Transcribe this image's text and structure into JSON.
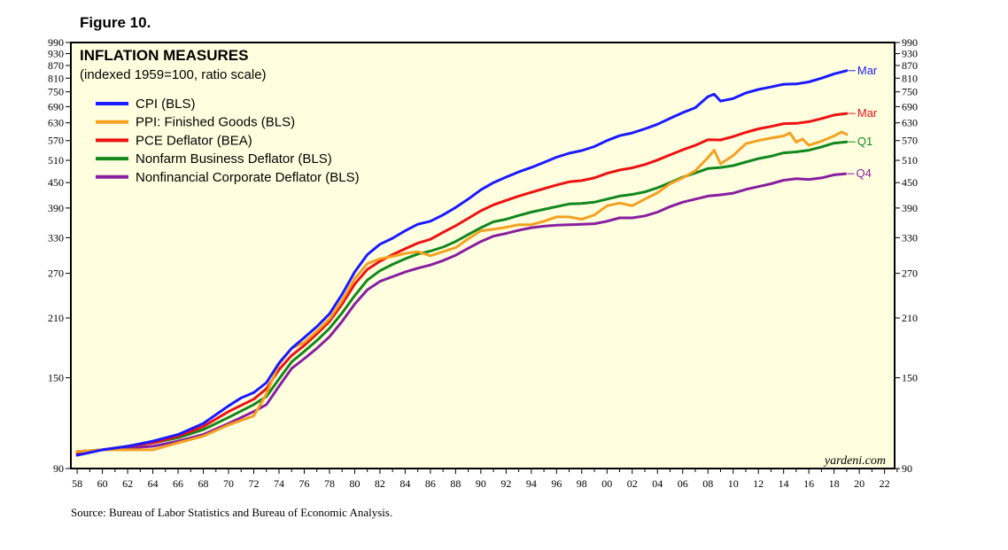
{
  "figure_label": "Figure 10.",
  "source": "Source: Bureau of Labor Statistics and Bureau of Economic Analysis.",
  "chart_data": {
    "type": "line",
    "title": "INFLATION MEASURES",
    "subtitle": "(indexed 1959=100, ratio scale)",
    "watermark": "yardeni.com",
    "ylim": [
      90,
      990
    ],
    "yscale": "log",
    "xlim": [
      1957.5,
      2022.8
    ],
    "y_ticks": [
      90,
      150,
      210,
      270,
      330,
      390,
      450,
      510,
      570,
      630,
      690,
      750,
      810,
      870,
      930,
      990
    ],
    "x_ticks": [
      {
        "year": 1958,
        "label": "58"
      },
      {
        "year": 1960,
        "label": "60"
      },
      {
        "year": 1962,
        "label": "62"
      },
      {
        "year": 1964,
        "label": "64"
      },
      {
        "year": 1966,
        "label": "66"
      },
      {
        "year": 1968,
        "label": "68"
      },
      {
        "year": 1970,
        "label": "70"
      },
      {
        "year": 1972,
        "label": "72"
      },
      {
        "year": 1974,
        "label": "74"
      },
      {
        "year": 1976,
        "label": "76"
      },
      {
        "year": 1978,
        "label": "78"
      },
      {
        "year": 1980,
        "label": "80"
      },
      {
        "year": 1982,
        "label": "82"
      },
      {
        "year": 1984,
        "label": "84"
      },
      {
        "year": 1986,
        "label": "86"
      },
      {
        "year": 1988,
        "label": "88"
      },
      {
        "year": 1990,
        "label": "90"
      },
      {
        "year": 1992,
        "label": "92"
      },
      {
        "year": 1994,
        "label": "94"
      },
      {
        "year": 1996,
        "label": "96"
      },
      {
        "year": 1998,
        "label": "98"
      },
      {
        "year": 2000,
        "label": "00"
      },
      {
        "year": 2002,
        "label": "02"
      },
      {
        "year": 2004,
        "label": "04"
      },
      {
        "year": 2006,
        "label": "06"
      },
      {
        "year": 2008,
        "label": "08"
      },
      {
        "year": 2010,
        "label": "10"
      },
      {
        "year": 2012,
        "label": "12"
      },
      {
        "year": 2014,
        "label": "14"
      },
      {
        "year": 2016,
        "label": "16"
      },
      {
        "year": 2018,
        "label": "18"
      },
      {
        "year": 2020,
        "label": "20"
      },
      {
        "year": 2022,
        "label": "22"
      }
    ],
    "legend": "top-left",
    "series": [
      {
        "name": "CPI (BLS)",
        "color": "#1a1aff",
        "end_label": "Mar",
        "points": [
          [
            1958,
            97
          ],
          [
            1960,
            100
          ],
          [
            1962,
            102
          ],
          [
            1964,
            105
          ],
          [
            1966,
            109
          ],
          [
            1968,
            116
          ],
          [
            1970,
            128
          ],
          [
            1971,
            134
          ],
          [
            1972,
            138
          ],
          [
            1973,
            146
          ],
          [
            1974,
            163
          ],
          [
            1975,
            177
          ],
          [
            1976,
            188
          ],
          [
            1977,
            200
          ],
          [
            1978,
            215
          ],
          [
            1979,
            240
          ],
          [
            1980,
            272
          ],
          [
            1981,
            300
          ],
          [
            1982,
            318
          ],
          [
            1983,
            329
          ],
          [
            1984,
            343
          ],
          [
            1985,
            356
          ],
          [
            1986,
            362
          ],
          [
            1987,
            375
          ],
          [
            1988,
            391
          ],
          [
            1989,
            410
          ],
          [
            1990,
            432
          ],
          [
            1991,
            450
          ],
          [
            1992,
            464
          ],
          [
            1993,
            478
          ],
          [
            1994,
            490
          ],
          [
            1995,
            504
          ],
          [
            1996,
            519
          ],
          [
            1997,
            531
          ],
          [
            1998,
            539
          ],
          [
            1999,
            551
          ],
          [
            2000,
            570
          ],
          [
            2001,
            586
          ],
          [
            2002,
            595
          ],
          [
            2003,
            609
          ],
          [
            2004,
            625
          ],
          [
            2005,
            646
          ],
          [
            2006,
            667
          ],
          [
            2007,
            686
          ],
          [
            2008,
            730
          ],
          [
            2008.5,
            740
          ],
          [
            2009,
            712
          ],
          [
            2010,
            722
          ],
          [
            2011,
            745
          ],
          [
            2012,
            760
          ],
          [
            2013,
            771
          ],
          [
            2014,
            783
          ],
          [
            2015,
            784
          ],
          [
            2016,
            793
          ],
          [
            2017,
            810
          ],
          [
            2018,
            830
          ],
          [
            2019,
            845
          ]
        ]
      },
      {
        "name": "PPI: Finished Goods (BLS)",
        "color": "#f5a020",
        "end_label": "",
        "points": [
          [
            1958,
            99
          ],
          [
            1960,
            100
          ],
          [
            1962,
            100
          ],
          [
            1964,
            100
          ],
          [
            1966,
            104
          ],
          [
            1968,
            108
          ],
          [
            1970,
            115
          ],
          [
            1972,
            121
          ],
          [
            1973,
            137
          ],
          [
            1974,
            162
          ],
          [
            1975,
            177
          ],
          [
            1976,
            183
          ],
          [
            1977,
            195
          ],
          [
            1978,
            209
          ],
          [
            1979,
            232
          ],
          [
            1980,
            262
          ],
          [
            1981,
            285
          ],
          [
            1982,
            293
          ],
          [
            1983,
            297
          ],
          [
            1984,
            302
          ],
          [
            1985,
            305
          ],
          [
            1986,
            298
          ],
          [
            1987,
            305
          ],
          [
            1988,
            312
          ],
          [
            1989,
            328
          ],
          [
            1990,
            343
          ],
          [
            1991,
            346
          ],
          [
            1992,
            350
          ],
          [
            1993,
            355
          ],
          [
            1994,
            355
          ],
          [
            1995,
            362
          ],
          [
            1996,
            371
          ],
          [
            1997,
            371
          ],
          [
            1998,
            366
          ],
          [
            1999,
            375
          ],
          [
            2000,
            395
          ],
          [
            2001,
            401
          ],
          [
            2002,
            395
          ],
          [
            2003,
            410
          ],
          [
            2004,
            425
          ],
          [
            2005,
            447
          ],
          [
            2006,
            462
          ],
          [
            2007,
            481
          ],
          [
            2008,
            518
          ],
          [
            2008.5,
            540
          ],
          [
            2009,
            500
          ],
          [
            2010,
            524
          ],
          [
            2011,
            560
          ],
          [
            2012,
            570
          ],
          [
            2013,
            578
          ],
          [
            2014,
            585
          ],
          [
            2014.5,
            595
          ],
          [
            2015,
            565
          ],
          [
            2015.5,
            575
          ],
          [
            2016,
            555
          ],
          [
            2017,
            568
          ],
          [
            2018,
            585
          ],
          [
            2018.6,
            598
          ],
          [
            2019,
            590
          ]
        ]
      },
      {
        "name": "PCE Deflator (BEA)",
        "color": "#ee1111",
        "end_label": "Mar",
        "points": [
          [
            1958,
            98
          ],
          [
            1960,
            100
          ],
          [
            1962,
            102
          ],
          [
            1964,
            104
          ],
          [
            1966,
            108
          ],
          [
            1968,
            114
          ],
          [
            1970,
            124
          ],
          [
            1972,
            133
          ],
          [
            1973,
            141
          ],
          [
            1974,
            157
          ],
          [
            1975,
            170
          ],
          [
            1976,
            180
          ],
          [
            1977,
            192
          ],
          [
            1978,
            206
          ],
          [
            1979,
            227
          ],
          [
            1980,
            254
          ],
          [
            1981,
            276
          ],
          [
            1982,
            289
          ],
          [
            1983,
            300
          ],
          [
            1984,
            310
          ],
          [
            1985,
            320
          ],
          [
            1986,
            327
          ],
          [
            1987,
            340
          ],
          [
            1988,
            353
          ],
          [
            1989,
            368
          ],
          [
            1990,
            384
          ],
          [
            1991,
            397
          ],
          [
            1992,
            407
          ],
          [
            1993,
            417
          ],
          [
            1994,
            426
          ],
          [
            1995,
            435
          ],
          [
            1996,
            444
          ],
          [
            1997,
            452
          ],
          [
            1998,
            455
          ],
          [
            1999,
            462
          ],
          [
            2000,
            474
          ],
          [
            2001,
            483
          ],
          [
            2002,
            489
          ],
          [
            2003,
            498
          ],
          [
            2004,
            511
          ],
          [
            2005,
            526
          ],
          [
            2006,
            541
          ],
          [
            2007,
            555
          ],
          [
            2008,
            573
          ],
          [
            2009,
            572
          ],
          [
            2010,
            583
          ],
          [
            2011,
            597
          ],
          [
            2012,
            609
          ],
          [
            2013,
            617
          ],
          [
            2014,
            627
          ],
          [
            2015,
            628
          ],
          [
            2016,
            634
          ],
          [
            2017,
            645
          ],
          [
            2018,
            658
          ],
          [
            2019,
            664
          ]
        ]
      },
      {
        "name": "Nonfarm Business Deflator (BLS)",
        "color": "#11881d",
        "end_label": "Q1",
        "points": [
          [
            1958,
            99
          ],
          [
            1960,
            100
          ],
          [
            1962,
            102
          ],
          [
            1964,
            104
          ],
          [
            1966,
            107
          ],
          [
            1968,
            112
          ],
          [
            1970,
            120
          ],
          [
            1972,
            129
          ],
          [
            1973,
            135
          ],
          [
            1974,
            149
          ],
          [
            1975,
            164
          ],
          [
            1976,
            174
          ],
          [
            1977,
            185
          ],
          [
            1978,
            198
          ],
          [
            1979,
            216
          ],
          [
            1980,
            238
          ],
          [
            1981,
            260
          ],
          [
            1982,
            274
          ],
          [
            1983,
            284
          ],
          [
            1984,
            293
          ],
          [
            1985,
            301
          ],
          [
            1986,
            306
          ],
          [
            1987,
            313
          ],
          [
            1988,
            323
          ],
          [
            1989,
            336
          ],
          [
            1990,
            349
          ],
          [
            1991,
            361
          ],
          [
            1992,
            366
          ],
          [
            1993,
            374
          ],
          [
            1994,
            381
          ],
          [
            1995,
            387
          ],
          [
            1996,
            393
          ],
          [
            1997,
            399
          ],
          [
            1998,
            400
          ],
          [
            1999,
            403
          ],
          [
            2000,
            410
          ],
          [
            2001,
            417
          ],
          [
            2002,
            421
          ],
          [
            2003,
            427
          ],
          [
            2004,
            437
          ],
          [
            2005,
            450
          ],
          [
            2006,
            464
          ],
          [
            2007,
            475
          ],
          [
            2008,
            487
          ],
          [
            2009,
            490
          ],
          [
            2010,
            495
          ],
          [
            2011,
            505
          ],
          [
            2012,
            515
          ],
          [
            2013,
            522
          ],
          [
            2014,
            532
          ],
          [
            2015,
            535
          ],
          [
            2016,
            540
          ],
          [
            2017,
            550
          ],
          [
            2018,
            562
          ],
          [
            2019,
            566
          ]
        ]
      },
      {
        "name": "Nonfinancial Corporate Deflator (BLS)",
        "color": "#881ea0",
        "end_label": "Q4",
        "points": [
          [
            1958,
            99
          ],
          [
            1960,
            100
          ],
          [
            1962,
            101
          ],
          [
            1964,
            102
          ],
          [
            1966,
            105
          ],
          [
            1968,
            109
          ],
          [
            1970,
            116
          ],
          [
            1972,
            124
          ],
          [
            1973,
            129
          ],
          [
            1974,
            143
          ],
          [
            1975,
            158
          ],
          [
            1976,
            167
          ],
          [
            1977,
            177
          ],
          [
            1978,
            189
          ],
          [
            1979,
            206
          ],
          [
            1980,
            227
          ],
          [
            1981,
            246
          ],
          [
            1982,
            258
          ],
          [
            1983,
            265
          ],
          [
            1984,
            272
          ],
          [
            1985,
            278
          ],
          [
            1986,
            283
          ],
          [
            1987,
            290
          ],
          [
            1988,
            299
          ],
          [
            1989,
            311
          ],
          [
            1990,
            323
          ],
          [
            1991,
            333
          ],
          [
            1992,
            338
          ],
          [
            1993,
            344
          ],
          [
            1994,
            349
          ],
          [
            1995,
            352
          ],
          [
            1996,
            354
          ],
          [
            1997,
            355
          ],
          [
            1998,
            356
          ],
          [
            1999,
            357
          ],
          [
            2000,
            362
          ],
          [
            2001,
            369
          ],
          [
            2002,
            369
          ],
          [
            2003,
            373
          ],
          [
            2004,
            381
          ],
          [
            2005,
            393
          ],
          [
            2006,
            403
          ],
          [
            2007,
            410
          ],
          [
            2008,
            417
          ],
          [
            2009,
            420
          ],
          [
            2010,
            424
          ],
          [
            2011,
            433
          ],
          [
            2012,
            440
          ],
          [
            2013,
            447
          ],
          [
            2014,
            456
          ],
          [
            2015,
            460
          ],
          [
            2016,
            458
          ],
          [
            2017,
            462
          ],
          [
            2018,
            470
          ],
          [
            2018.9,
            473
          ]
        ]
      }
    ]
  }
}
